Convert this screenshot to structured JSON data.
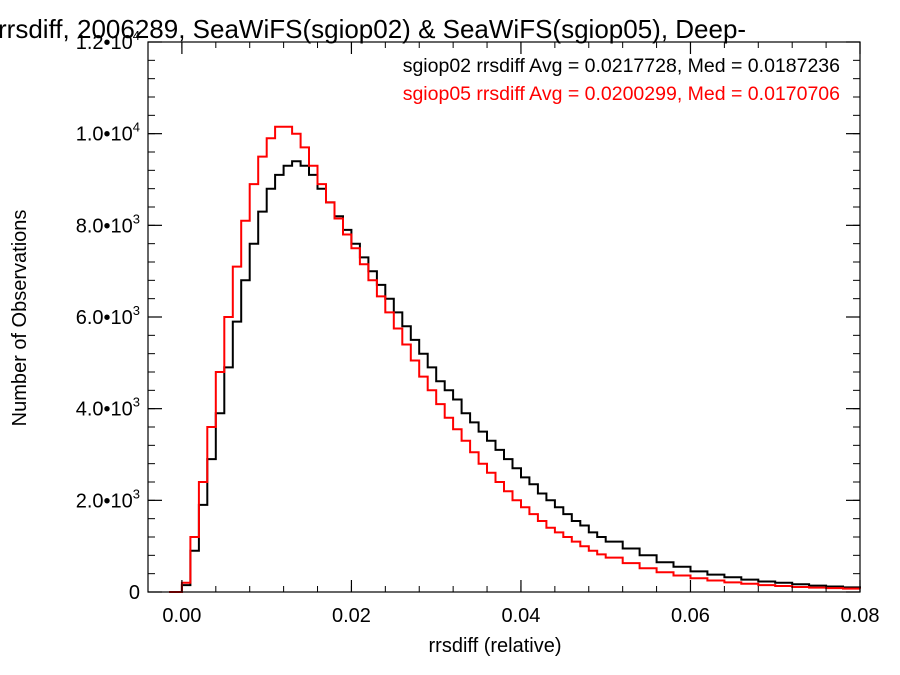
{
  "chart_data": {
    "type": "line",
    "title": "rrsdiff, 2006289, SeaWiFS(sgiop02) & SeaWiFS(sgiop05), Deep-",
    "xlabel": "rrsdiff (relative)",
    "ylabel": "Number of Observations",
    "xlim": [
      -0.004,
      0.08
    ],
    "ylim": [
      0,
      12000
    ],
    "x_ticks": [
      {
        "value": 0.0,
        "label": "0.00"
      },
      {
        "value": 0.02,
        "label": "0.02"
      },
      {
        "value": 0.04,
        "label": "0.04"
      },
      {
        "value": 0.06,
        "label": "0.06"
      },
      {
        "value": 0.08,
        "label": "0.08"
      }
    ],
    "y_ticks": [
      {
        "value": 0,
        "mantissa": "0",
        "exponent": ""
      },
      {
        "value": 2000,
        "mantissa": "2.0•10",
        "exponent": "3"
      },
      {
        "value": 4000,
        "mantissa": "4.0•10",
        "exponent": "3"
      },
      {
        "value": 6000,
        "mantissa": "6.0•10",
        "exponent": "3"
      },
      {
        "value": 8000,
        "mantissa": "8.0•10",
        "exponent": "3"
      },
      {
        "value": 10000,
        "mantissa": "1.0•10",
        "exponent": "4"
      },
      {
        "value": 12000,
        "mantissa": "1.2•10",
        "exponent": "4"
      }
    ],
    "grid": false,
    "legend_position": "top-right",
    "series": [
      {
        "name": "sgiop02",
        "color": "#000000",
        "annotation": "sgiop02 rrsdiff Avg = 0.0217728, Med = 0.0187236",
        "x": [
          -0.0015,
          -0.0005,
          0.0,
          0.001,
          0.002,
          0.003,
          0.004,
          0.005,
          0.006,
          0.007,
          0.008,
          0.009,
          0.01,
          0.011,
          0.012,
          0.013,
          0.014,
          0.015,
          0.016,
          0.017,
          0.018,
          0.019,
          0.02,
          0.021,
          0.022,
          0.023,
          0.024,
          0.025,
          0.026,
          0.027,
          0.028,
          0.029,
          0.03,
          0.031,
          0.032,
          0.033,
          0.034,
          0.035,
          0.036,
          0.037,
          0.038,
          0.039,
          0.04,
          0.041,
          0.042,
          0.043,
          0.044,
          0.045,
          0.046,
          0.047,
          0.048,
          0.049,
          0.05,
          0.052,
          0.054,
          0.056,
          0.058,
          0.06,
          0.062,
          0.064,
          0.066,
          0.068,
          0.07,
          0.072,
          0.074,
          0.076,
          0.078,
          0.08
        ],
        "y": [
          0,
          0,
          150,
          900,
          1900,
          2900,
          3900,
          4900,
          5900,
          6800,
          7600,
          8300,
          8800,
          9100,
          9300,
          9400,
          9300,
          9100,
          8800,
          8500,
          8200,
          7900,
          7600,
          7300,
          7000,
          6700,
          6400,
          6100,
          5800,
          5500,
          5200,
          4900,
          4600,
          4400,
          4200,
          3900,
          3700,
          3500,
          3300,
          3100,
          2900,
          2700,
          2500,
          2350,
          2150,
          2000,
          1850,
          1700,
          1550,
          1450,
          1300,
          1200,
          1100,
          950,
          800,
          650,
          550,
          450,
          380,
          320,
          270,
          230,
          200,
          170,
          140,
          120,
          100,
          90
        ]
      },
      {
        "name": "sgiop05",
        "color": "#ff0000",
        "annotation": "sgiop05 rrsdiff Avg = 0.0200299, Med = 0.0170706",
        "x": [
          -0.0015,
          -0.0005,
          0.0,
          0.001,
          0.002,
          0.003,
          0.004,
          0.005,
          0.006,
          0.007,
          0.008,
          0.009,
          0.01,
          0.011,
          0.012,
          0.013,
          0.014,
          0.015,
          0.016,
          0.017,
          0.018,
          0.019,
          0.02,
          0.021,
          0.022,
          0.023,
          0.024,
          0.025,
          0.026,
          0.027,
          0.028,
          0.029,
          0.03,
          0.031,
          0.032,
          0.033,
          0.034,
          0.035,
          0.036,
          0.037,
          0.038,
          0.039,
          0.04,
          0.041,
          0.042,
          0.043,
          0.044,
          0.045,
          0.046,
          0.047,
          0.048,
          0.049,
          0.05,
          0.052,
          0.054,
          0.056,
          0.058,
          0.06,
          0.062,
          0.064,
          0.066,
          0.068,
          0.07,
          0.072,
          0.074,
          0.076,
          0.078,
          0.08
        ],
        "y": [
          0,
          0,
          200,
          1200,
          2400,
          3600,
          4800,
          6000,
          7100,
          8100,
          8900,
          9500,
          9900,
          10150,
          10150,
          10000,
          9700,
          9300,
          8900,
          8500,
          8150,
          7800,
          7500,
          7150,
          6800,
          6450,
          6100,
          5750,
          5400,
          5050,
          4700,
          4400,
          4100,
          3800,
          3550,
          3300,
          3050,
          2800,
          2600,
          2400,
          2200,
          2000,
          1850,
          1700,
          1550,
          1400,
          1300,
          1200,
          1100,
          1000,
          900,
          820,
          750,
          630,
          520,
          430,
          360,
          300,
          250,
          210,
          180,
          150,
          130,
          110,
          95,
          85,
          75,
          70
        ]
      }
    ]
  }
}
